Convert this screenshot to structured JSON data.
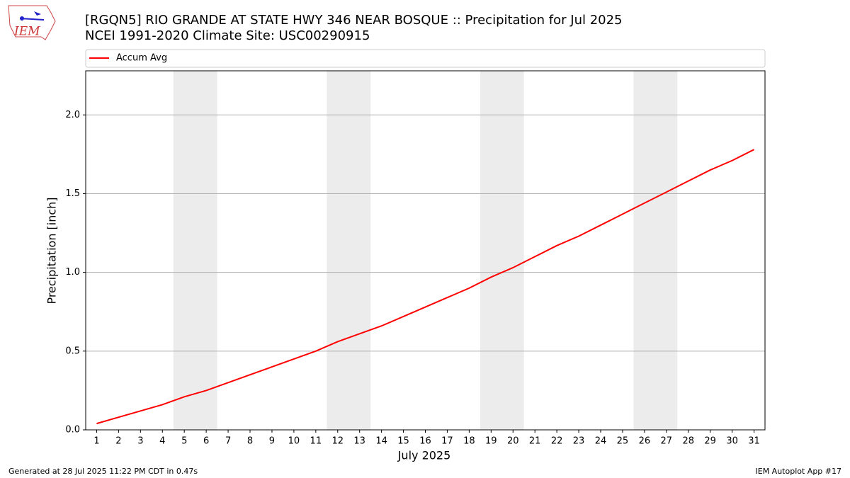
{
  "logo_text": "IEM",
  "footer_left": "Generated at 28 Jul 2025 11:22 PM CDT in 0.47s",
  "footer_right": "IEM Autoplot App #17",
  "chart_data": {
    "type": "line",
    "title": "[RGQN5] RIO GRANDE AT STATE HWY 346 NEAR BOSQUE :: Precipitation for Jul 2025",
    "subtitle": "NCEI 1991-2020 Climate Site: USC00290915",
    "x_label": "July 2025",
    "y_label": "Precipitation [inch]",
    "x": [
      1,
      2,
      3,
      4,
      5,
      6,
      7,
      8,
      9,
      10,
      11,
      12,
      13,
      14,
      15,
      16,
      17,
      18,
      19,
      20,
      21,
      22,
      23,
      24,
      25,
      26,
      27,
      28,
      29,
      30,
      31
    ],
    "series": [
      {
        "name": "Accum Avg",
        "color": "#ff0000",
        "values": [
          0.04,
          0.08,
          0.12,
          0.16,
          0.21,
          0.25,
          0.3,
          0.35,
          0.4,
          0.45,
          0.5,
          0.56,
          0.61,
          0.66,
          0.72,
          0.78,
          0.84,
          0.9,
          0.97,
          1.03,
          1.1,
          1.17,
          1.23,
          1.3,
          1.37,
          1.44,
          1.51,
          1.58,
          1.65,
          1.71,
          1.78
        ]
      }
    ],
    "shaded_ranges": [
      [
        4.5,
        6.5
      ],
      [
        11.5,
        13.5
      ],
      [
        18.5,
        20.5
      ],
      [
        25.5,
        27.5
      ]
    ],
    "shade_color": "#ececec",
    "xlim": [
      0.5,
      31.5
    ],
    "xticks": [
      1,
      2,
      3,
      4,
      5,
      6,
      7,
      8,
      9,
      10,
      11,
      12,
      13,
      14,
      15,
      16,
      17,
      18,
      19,
      20,
      21,
      22,
      23,
      24,
      25,
      26,
      27,
      28,
      29,
      30,
      31
    ],
    "ylim": [
      0,
      2.28
    ],
    "yticks": [
      {
        "value": 0,
        "label": "0.0"
      },
      0.5,
      {
        "value": 1,
        "label": "1.0"
      },
      1.5,
      {
        "value": 2,
        "label": "2.0"
      }
    ],
    "grid": true,
    "legend": "top"
  }
}
